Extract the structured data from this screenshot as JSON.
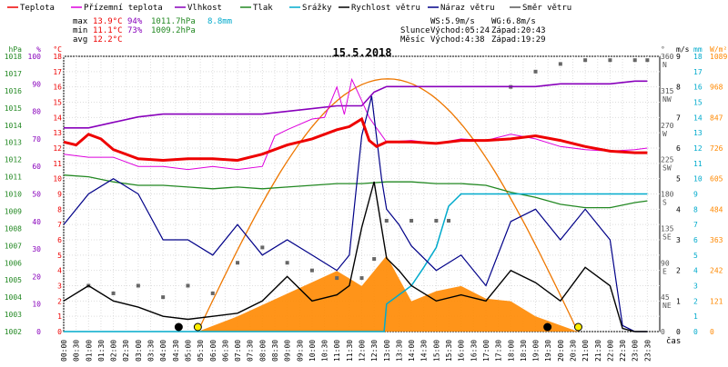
{
  "chart_data": {
    "type": "line",
    "title": "15.5.2018",
    "legend": [
      {
        "name": "Teplota",
        "color": "#ee0000"
      },
      {
        "name": "Přízemní teplota",
        "color": "#dd00dd"
      },
      {
        "name": "Vlhkost",
        "color": "#8800bb"
      },
      {
        "name": "Tlak",
        "color": "#228822"
      },
      {
        "name": "Srážky",
        "color": "#00aacc"
      },
      {
        "name": "Rychlost větru",
        "color": "#000000"
      },
      {
        "name": "Náraz větru",
        "color": "#000088"
      },
      {
        "name": "Směr větru",
        "color": "#555555"
      }
    ],
    "stats": {
      "max": {
        "label": "max",
        "temp": "13.9°C",
        "hum": "94%",
        "press": "1011.7hPa",
        "rain": "8.8mm"
      },
      "min": {
        "label": "min",
        "temp": "11.1°C",
        "hum": "73%",
        "press": "1009.2hPa"
      },
      "avg": {
        "label": "avg",
        "temp": "12.2°C"
      }
    },
    "wind_info": {
      "ws": "WS:5.9m/s",
      "wg": "WG:6.8m/s"
    },
    "sun": {
      "label": "Slunce",
      "rise": "Východ:05:24",
      "set": "Západ:20:43"
    },
    "moon": {
      "label": "Měsíc",
      "rise": "Východ:4:38",
      "set": "Západ:19:29"
    },
    "axes": {
      "hpa": {
        "unit": "hPa",
        "ticks": [
          "1018",
          "1017",
          "1016",
          "1015",
          "1014",
          "1013",
          "1012",
          "1011",
          "1010",
          "1009",
          "1008",
          "1007",
          "1006",
          "1005",
          "1004",
          "1003",
          "1002"
        ],
        "color": "#228822"
      },
      "pct": {
        "unit": "%",
        "ticks": [
          "100",
          "90",
          "80",
          "70",
          "60",
          "50",
          "40",
          "30",
          "20",
          "10",
          "0"
        ],
        "color": "#8800bb"
      },
      "temp": {
        "unit": "°C",
        "ticks": [
          "18",
          "17",
          "16",
          "15",
          "14",
          "13",
          "12",
          "11",
          "10",
          "9",
          "8",
          "7",
          "6",
          "5",
          "4",
          "3",
          "2",
          "1",
          "0"
        ],
        "color": "#ee0000"
      },
      "dir": {
        "unit": "°",
        "ticks": [
          "360\nN",
          "315\nNW",
          "270\nW",
          "225\nSW",
          "180\nS",
          "135\nSE",
          "90\nE",
          "45\nNE",
          "0"
        ],
        "color": "#555555"
      },
      "ms": {
        "unit": "m/s",
        "ticks": [
          "9",
          "8",
          "7",
          "6",
          "5",
          "4",
          "3",
          "2",
          "1",
          "0"
        ],
        "color": "#000000"
      },
      "mm": {
        "unit": "mm",
        "ticks": [
          "18",
          "17",
          "16",
          "15",
          "14",
          "13",
          "12",
          "11",
          "10",
          "9",
          "8",
          "7",
          "6",
          "5",
          "4",
          "3",
          "2",
          "1",
          "0"
        ],
        "color": "#00aacc"
      },
      "wm2": {
        "unit": "W/m²",
        "ticks": [
          "1089",
          "968",
          "847",
          "726",
          "605",
          "484",
          "363",
          "242",
          "121",
          "0"
        ],
        "color": "#ff8800"
      },
      "x": {
        "label": "čas",
        "ticks": [
          "00:00",
          "00:30",
          "01:00",
          "01:30",
          "02:00",
          "02:30",
          "03:00",
          "03:30",
          "04:00",
          "04:30",
          "05:00",
          "05:30",
          "06:00",
          "06:30",
          "07:00",
          "07:30",
          "08:00",
          "08:30",
          "09:00",
          "09:30",
          "10:00",
          "10:30",
          "11:00",
          "11:30",
          "12:00",
          "12:30",
          "13:00",
          "13:30",
          "14:00",
          "14:30",
          "15:00",
          "15:30",
          "16:00",
          "16:30",
          "17:00",
          "17:30",
          "18:00",
          "18:30",
          "19:00",
          "19:30",
          "20:00",
          "20:30",
          "21:00",
          "21:30",
          "22:00",
          "22:30",
          "23:00",
          "23:30"
        ]
      }
    },
    "series": [
      {
        "name": "Teplota",
        "unit": "°C",
        "x_hours": [
          0,
          0.5,
          1,
          1.5,
          2,
          3,
          4,
          5,
          6,
          7,
          8,
          9,
          10,
          11,
          11.5,
          12,
          12.3,
          12.6,
          13,
          14,
          15,
          16,
          17,
          18,
          19,
          20,
          21,
          22,
          23,
          23.5
        ],
        "values": [
          12.4,
          12.2,
          12.9,
          12.6,
          11.9,
          11.3,
          11.2,
          11.3,
          11.3,
          11.2,
          11.6,
          12.2,
          12.6,
          13.2,
          13.4,
          13.9,
          12.5,
          12.1,
          12.4,
          12.4,
          12.3,
          12.5,
          12.5,
          12.6,
          12.8,
          12.5,
          12.1,
          11.8,
          11.7,
          11.7
        ]
      },
      {
        "name": "Přízemní teplota",
        "unit": "°C",
        "x_hours": [
          0,
          1,
          2,
          3,
          4,
          5,
          6,
          7,
          8,
          8.5,
          9,
          10,
          10.5,
          11,
          11.3,
          11.6,
          12,
          12.3,
          12.6,
          13,
          14,
          15,
          16,
          17,
          18,
          19,
          20,
          21,
          22,
          23,
          23.5
        ],
        "values": [
          11.6,
          11.4,
          11.4,
          10.8,
          10.8,
          10.6,
          10.8,
          10.6,
          10.8,
          12.8,
          13.2,
          13.9,
          14.0,
          16.0,
          14.2,
          16.5,
          15.1,
          14.0,
          13.3,
          12.4,
          12.5,
          12.3,
          12.6,
          12.5,
          12.9,
          12.6,
          12.1,
          11.9,
          11.8,
          11.9,
          12.0
        ]
      },
      {
        "name": "Vlhkost",
        "unit": "%",
        "x_hours": [
          0,
          1,
          2,
          3,
          4,
          5,
          6,
          7,
          8,
          9,
          10,
          11,
          12,
          12.5,
          13,
          14,
          15,
          16,
          17,
          18,
          19,
          20,
          21,
          22,
          23,
          23.5
        ],
        "values": [
          74,
          74,
          76,
          78,
          79,
          79,
          79,
          79,
          79,
          80,
          81,
          82,
          82,
          87,
          89,
          89,
          89,
          89,
          89,
          89,
          89,
          90,
          90,
          90,
          91,
          91
        ]
      },
      {
        "name": "Tlak",
        "unit": "hPa",
        "x_hours": [
          0,
          1,
          2,
          3,
          4,
          5,
          6,
          7,
          8,
          9,
          10,
          11,
          12,
          13,
          14,
          15,
          16,
          17,
          18,
          19,
          20,
          21,
          22,
          23,
          23.5
        ],
        "values": [
          1011.1,
          1011.0,
          1010.7,
          1010.5,
          1010.5,
          1010.4,
          1010.3,
          1010.4,
          1010.3,
          1010.4,
          1010.5,
          1010.6,
          1010.6,
          1010.7,
          1010.7,
          1010.6,
          1010.6,
          1010.5,
          1010.1,
          1009.8,
          1009.4,
          1009.2,
          1009.2,
          1009.5,
          1009.6
        ]
      },
      {
        "name": "Srážky",
        "unit": "mm",
        "x_hours": [
          0,
          12.9,
          13,
          14,
          14.5,
          15,
          15.5,
          16,
          16.5,
          17,
          18,
          19,
          20,
          21,
          22,
          23,
          23.5
        ],
        "values": [
          0,
          0,
          1.8,
          3.0,
          4.2,
          5.5,
          8.2,
          9.0,
          9.0,
          9.0,
          9.0,
          9.0,
          9.0,
          9.0,
          9.0,
          9.0,
          9.0
        ]
      },
      {
        "name": "Rychlost větru",
        "unit": "m/s",
        "x_hours": [
          0,
          1,
          2,
          3,
          4,
          5,
          6,
          7,
          8,
          9,
          10,
          11,
          11.5,
          12,
          12.5,
          13,
          13.5,
          14,
          15,
          16,
          17,
          18,
          19,
          20,
          21,
          22,
          22.5,
          23,
          23.5
        ],
        "values": [
          1.0,
          1.5,
          1.0,
          0.8,
          0.5,
          0.4,
          0.5,
          0.6,
          1.0,
          1.8,
          1.0,
          1.2,
          1.5,
          3.4,
          4.9,
          2.4,
          2.0,
          1.5,
          1.0,
          1.2,
          1.0,
          2.0,
          1.6,
          1.0,
          2.1,
          1.5,
          0.1,
          0,
          0
        ]
      },
      {
        "name": "Náraz větru",
        "unit": "m/s",
        "x_hours": [
          0,
          1,
          2,
          3,
          4,
          5,
          6,
          7,
          8,
          9,
          10,
          11,
          11.5,
          12,
          12.4,
          12.8,
          13,
          13.5,
          14,
          15,
          16,
          17,
          18,
          19,
          20,
          21,
          22,
          22.5,
          23,
          23.5
        ],
        "values": [
          3.5,
          4.5,
          5.0,
          4.5,
          3.0,
          3.0,
          2.5,
          3.5,
          2.5,
          3.0,
          2.5,
          2.0,
          2.5,
          6.4,
          7.7,
          5.0,
          4.0,
          3.5,
          2.8,
          2.0,
          2.5,
          1.5,
          3.6,
          4.0,
          3.0,
          4.0,
          3.0,
          0.2,
          0,
          0
        ]
      },
      {
        "name": "Směr větru",
        "unit": "°",
        "x_hours": [
          1,
          2,
          3,
          4,
          5,
          6,
          7,
          8,
          9,
          10,
          11,
          12,
          12.5,
          13,
          14,
          15,
          15.5,
          18,
          19,
          20,
          21,
          22,
          23,
          23.5
        ],
        "values": [
          60,
          50,
          60,
          45,
          60,
          50,
          90,
          110,
          90,
          80,
          70,
          70,
          95,
          145,
          145,
          145,
          145,
          320,
          340,
          350,
          355,
          355,
          355,
          355
        ]
      },
      {
        "name": "Sluneční záření",
        "unit": "W/m²",
        "x_hours": [
          5.4,
          7,
          9,
          11,
          12,
          13,
          14,
          15,
          16,
          17,
          18,
          19,
          20.7
        ],
        "values": [
          0,
          60,
          150,
          240,
          180,
          300,
          120,
          160,
          180,
          130,
          120,
          60,
          0
        ]
      }
    ],
    "xlim": [
      0,
      24
    ],
    "grid": true
  }
}
